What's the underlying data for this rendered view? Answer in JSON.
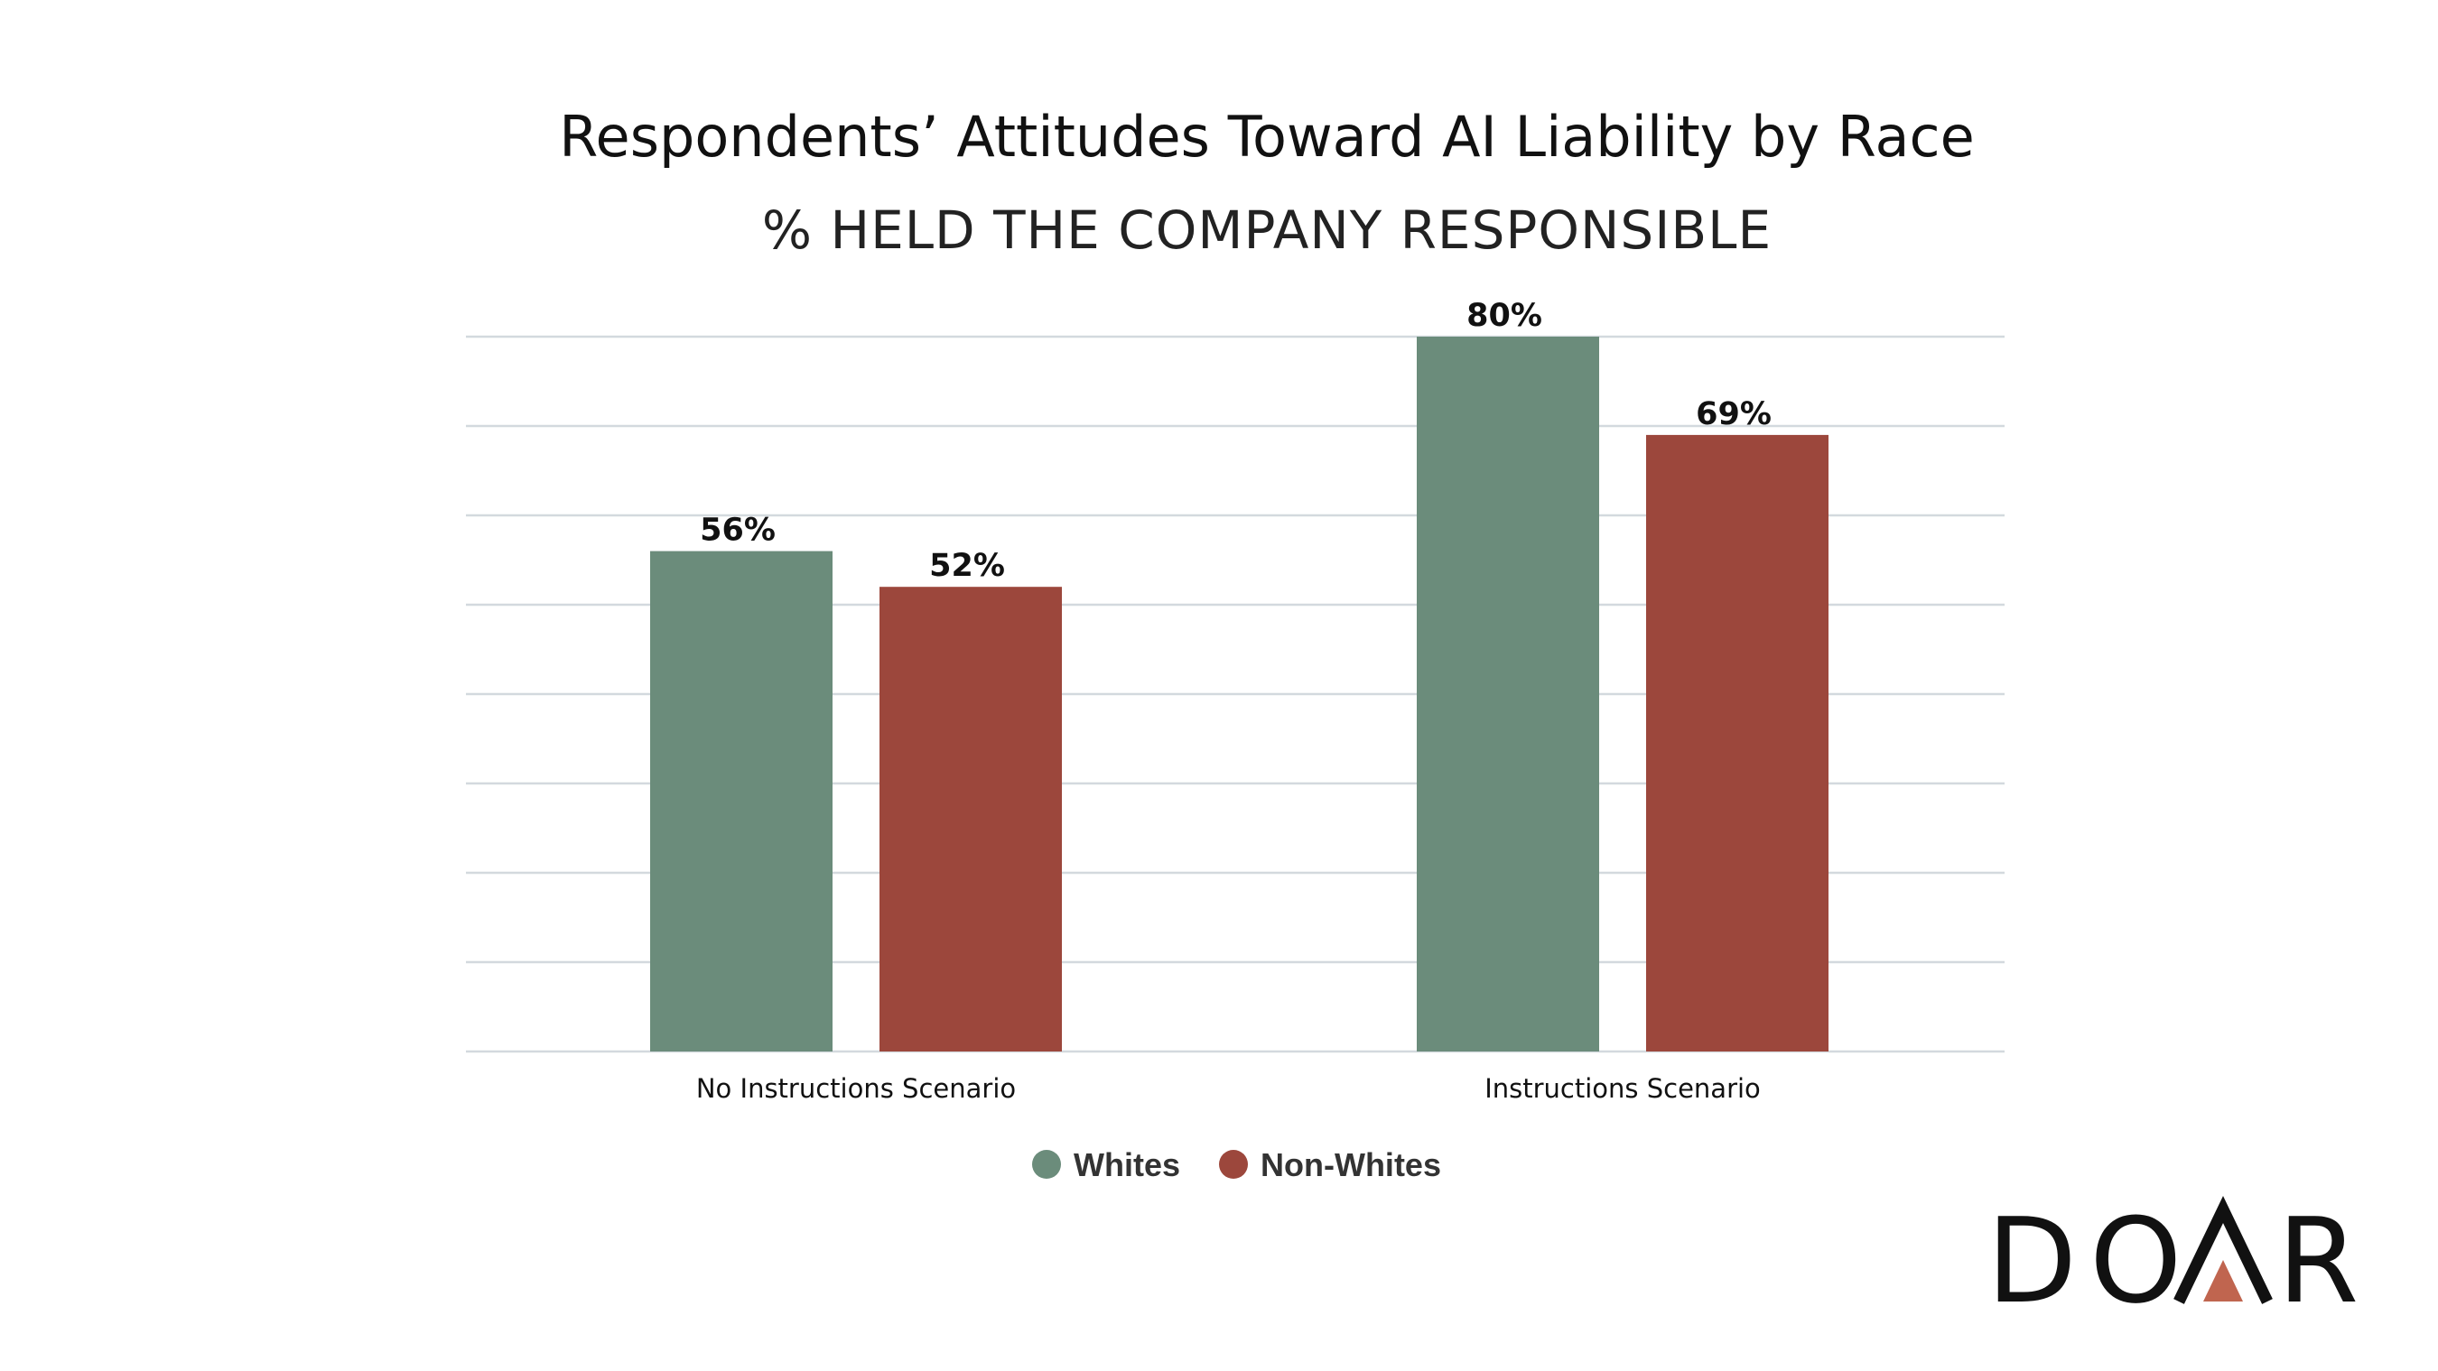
{
  "chart_data": {
    "type": "bar",
    "title": "Respondents’ Attitudes Toward AI Liability by Race",
    "subtitle": "% HELD THE COMPANY RESPONSIBLE",
    "categories": [
      "No Instructions Scenario",
      "Instructions Scenario"
    ],
    "series": [
      {
        "name": "Whites",
        "values": [
          56,
          80
        ],
        "labels": [
          "56%",
          "80%"
        ],
        "color": "#6b8c7b"
      },
      {
        "name": "Non-Whites",
        "values": [
          52,
          69
        ],
        "labels": [
          "52%",
          "69%"
        ],
        "color": "#9c473c"
      }
    ],
    "ylim": [
      0,
      80
    ],
    "grid": true,
    "legend_position": "bottom"
  },
  "logo": {
    "text": "DOAR",
    "accent_color": "#c0654f"
  }
}
